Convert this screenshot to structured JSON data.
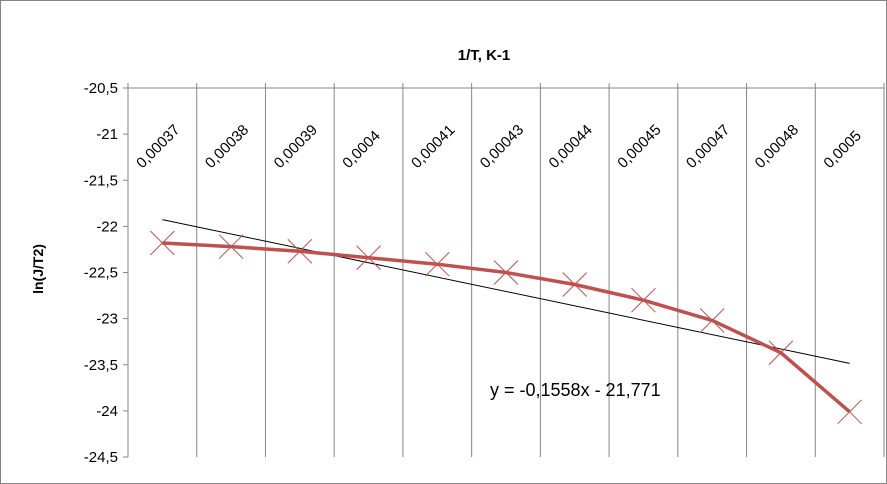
{
  "chart_data": {
    "type": "line",
    "title": "1/T, K-1",
    "xlabel": "",
    "ylabel": "ln(J/T2)",
    "categories": [
      "0,00037",
      "0,00038",
      "0,00039",
      "0,0004",
      "0,00041",
      "0,00043",
      "0,00044",
      "0,00045",
      "0,00047",
      "0,00048",
      "0,0005"
    ],
    "ylim": [
      -24.5,
      -20.5
    ],
    "yticks": [
      -20.5,
      -21,
      -21.5,
      -22,
      -22.5,
      -23,
      -23.5,
      -24,
      -24.5
    ],
    "ytick_labels": [
      "-20,5",
      "-21",
      "-21,5",
      "-22",
      "-22,5",
      "-23",
      "-23,5",
      "-24",
      "-24,5"
    ],
    "series": [
      {
        "values": [
          -22.18,
          -22.22,
          -22.27,
          -22.34,
          -22.41,
          -22.5,
          -22.63,
          -22.8,
          -23.02,
          -23.37,
          -24.01
        ],
        "color": "#c0504d",
        "marker": "x"
      }
    ],
    "trendline": {
      "type": "linear",
      "slope": -0.1558,
      "intercept": -21.771,
      "equation": "y = -0,1558x - 21,771",
      "color": "#000000"
    },
    "grid": "vertical",
    "x_axis_position": "top",
    "legend": "none"
  }
}
